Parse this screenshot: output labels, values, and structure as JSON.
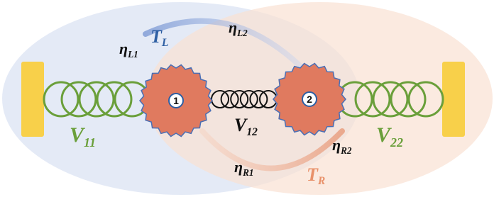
{
  "labels": [
    {
      "main": "T",
      "sub": "L"
    },
    {
      "main": "η",
      "sub": "L1"
    },
    {
      "main": "η",
      "sub": "L2"
    },
    {
      "main": "V",
      "sub": "11"
    },
    {
      "main": "V",
      "sub": "12"
    },
    {
      "main": "V",
      "sub": "22"
    },
    {
      "main": "η",
      "sub": "R1"
    },
    {
      "main": "η",
      "sub": "R2"
    },
    {
      "main": "T",
      "sub": "R"
    }
  ],
  "nodes": [
    "1",
    "2"
  ]
}
